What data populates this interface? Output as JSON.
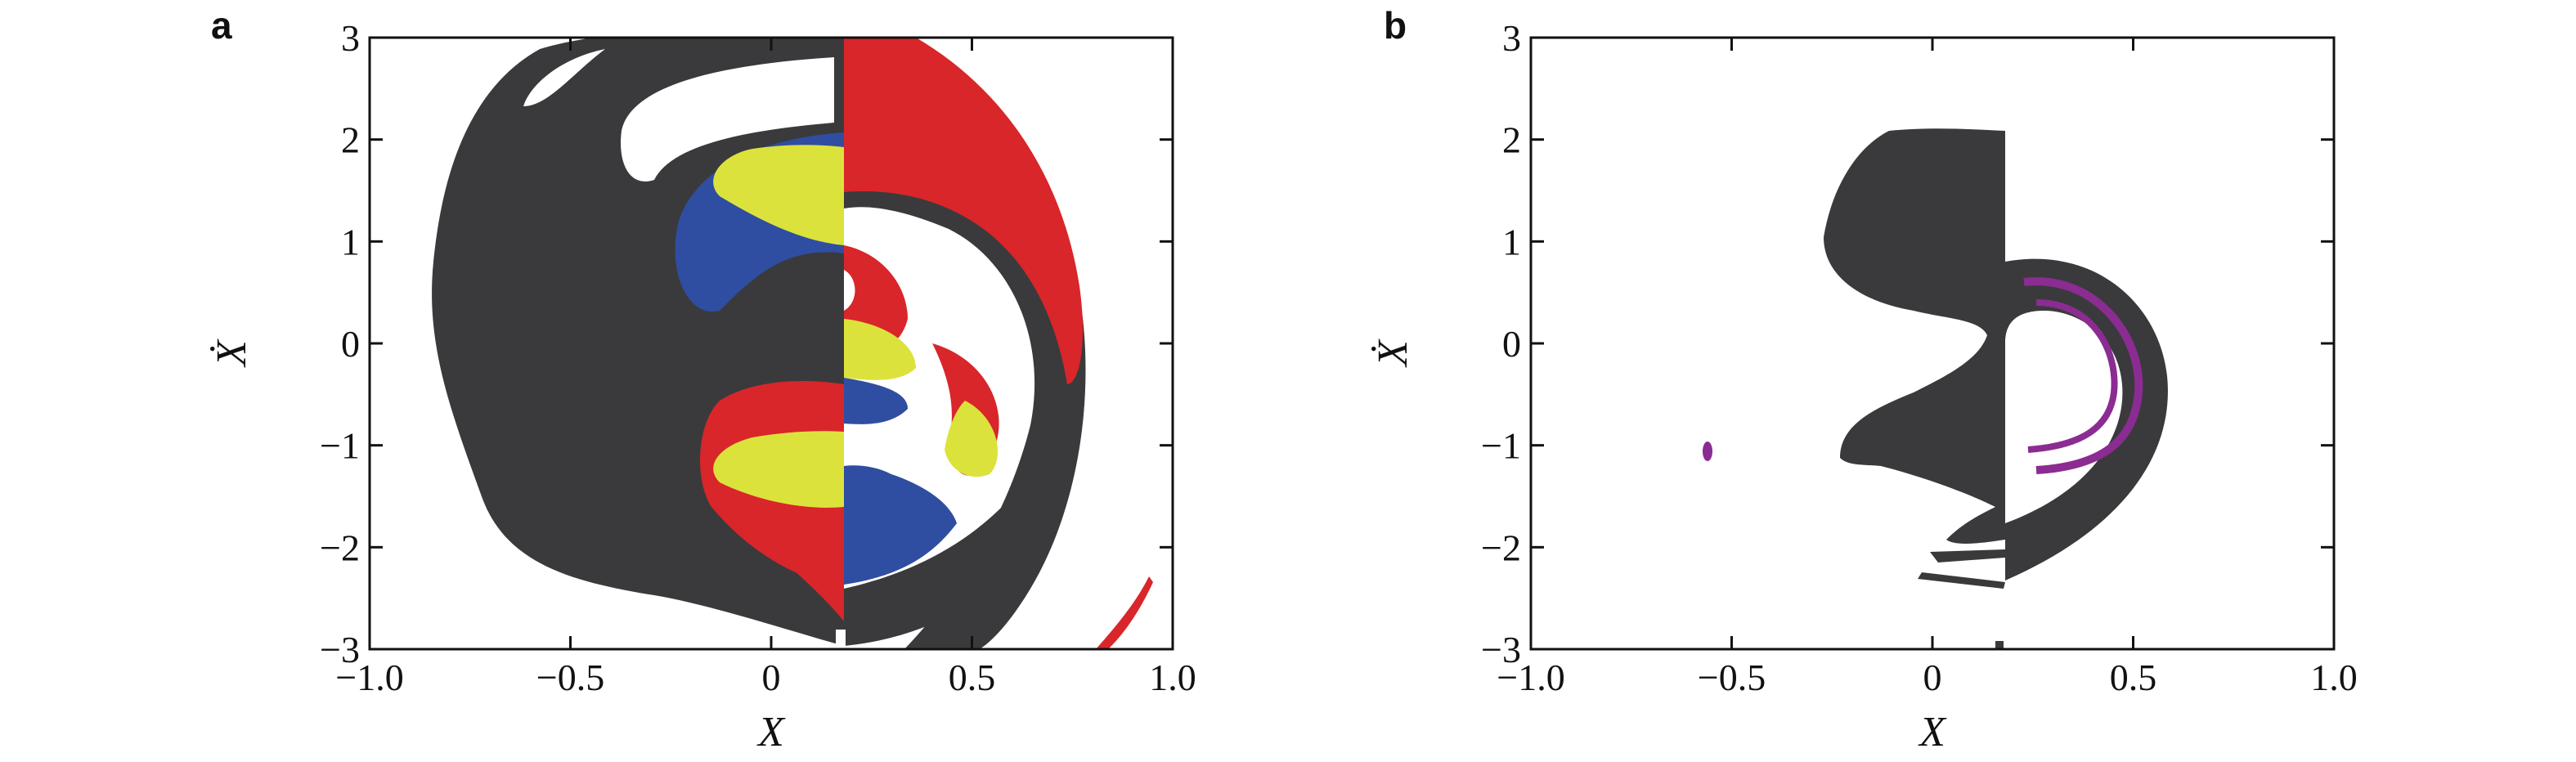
{
  "colors": {
    "dark": "#3a3a3c",
    "red": "#d8262a",
    "blue": "#2f4ea1",
    "yellow": "#dce23c",
    "purple": "#8b2c92"
  },
  "chart_data": [
    {
      "panel": "a",
      "type": "heatmap",
      "xlabel": "X",
      "ylabel": "Ẋ",
      "xlim": [
        -1.0,
        1.0
      ],
      "ylim": [
        -3,
        3
      ],
      "xticks": [
        "−1.0",
        "−0.5",
        "0",
        "0.5",
        "1.0"
      ],
      "yticks": [
        "3",
        "2",
        "1",
        "0",
        "−1",
        "−2",
        "−3"
      ],
      "grid": false,
      "legend": "none",
      "regions": [
        "dark basin",
        "red basin",
        "blue basin",
        "yellow basin",
        "white"
      ]
    },
    {
      "panel": "b",
      "type": "heatmap",
      "xlabel": "X",
      "ylabel": "Ẋ",
      "xlim": [
        -1.0,
        1.0
      ],
      "ylim": [
        -3,
        3
      ],
      "xticks": [
        "−1.0",
        "−0.5",
        "0",
        "0.5",
        "1.0"
      ],
      "yticks": [
        "3",
        "2",
        "1",
        "0",
        "−1",
        "−2",
        "−3"
      ],
      "grid": false,
      "legend": "none",
      "regions": [
        "dark basin",
        "purple basin",
        "white"
      ]
    }
  ]
}
